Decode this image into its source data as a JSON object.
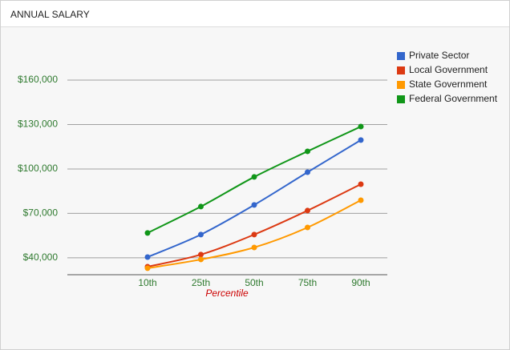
{
  "header": {
    "title": "ANNUAL SALARY"
  },
  "chart_data": {
    "type": "line",
    "x_label": "Percentile",
    "categories": [
      "10th",
      "25th",
      "50th",
      "75th",
      "90th"
    ],
    "series": [
      {
        "name": "Private Sector",
        "color": "#3366cc",
        "values": [
          40500,
          55700,
          75700,
          97800,
          119500
        ]
      },
      {
        "name": "Local Government",
        "color": "#dc3912",
        "values": [
          34000,
          42200,
          55700,
          71900,
          89700
        ]
      },
      {
        "name": "State Government",
        "color": "#ff9900",
        "values": [
          33000,
          38900,
          47000,
          60500,
          78900
        ]
      },
      {
        "name": "Federal Government",
        "color": "#109618",
        "values": [
          56800,
          74600,
          94600,
          111900,
          128600
        ]
      }
    ],
    "ylim": [
      28600,
      190000
    ],
    "yticks": [
      {
        "value": 40000,
        "label": "$40,000"
      },
      {
        "value": 70000,
        "label": "$70,000"
      },
      {
        "value": 100000,
        "label": "$100,000"
      },
      {
        "value": 130000,
        "label": "$130,000"
      },
      {
        "value": 160000,
        "label": "$160,000"
      }
    ],
    "grid": true,
    "legend": "right"
  }
}
